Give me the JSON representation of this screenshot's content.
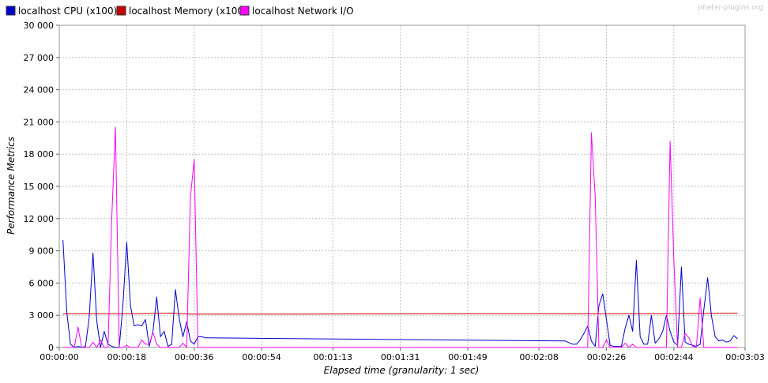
{
  "watermark": "jmeter-plugins.org",
  "legend": [
    {
      "label": "localhost CPU (x100)",
      "color": "#0000cc"
    },
    {
      "label": "localhost Memory (x100)",
      "color": "#cc0000"
    },
    {
      "label": "localhost Network I/O",
      "color": "#ff00ff"
    }
  ],
  "chart_data": {
    "type": "line",
    "title": "",
    "xlabel": "Elapsed time (granularity: 1 sec)",
    "ylabel": "Performance Metrics",
    "xlim": [
      0,
      183
    ],
    "ylim": [
      0,
      30000
    ],
    "grid": true,
    "legend_position": "top-left",
    "x_ticks": [
      {
        "value": 0,
        "label": "00:00:00"
      },
      {
        "value": 18,
        "label": "00:00:18"
      },
      {
        "value": 36,
        "label": "00:00:36"
      },
      {
        "value": 54,
        "label": "00:00:54"
      },
      {
        "value": 73,
        "label": "00:01:13"
      },
      {
        "value": 91,
        "label": "00:01:31"
      },
      {
        "value": 109,
        "label": "00:01:49"
      },
      {
        "value": 128,
        "label": "00:02:08"
      },
      {
        "value": 146,
        "label": "00:02:26"
      },
      {
        "value": 164,
        "label": "00:02:44"
      },
      {
        "value": 183,
        "label": "00:03:03"
      }
    ],
    "y_ticks": [
      {
        "value": 0,
        "label": "0"
      },
      {
        "value": 3000,
        "label": "3 000"
      },
      {
        "value": 6000,
        "label": "6 000"
      },
      {
        "value": 9000,
        "label": "9 000"
      },
      {
        "value": 12000,
        "label": "12 000"
      },
      {
        "value": 15000,
        "label": "15 000"
      },
      {
        "value": 18000,
        "label": "18 000"
      },
      {
        "value": 21000,
        "label": "21 000"
      },
      {
        "value": 24000,
        "label": "24 000"
      },
      {
        "value": 27000,
        "label": "27 000"
      },
      {
        "value": 30000,
        "label": "30 000"
      }
    ],
    "series": [
      {
        "name": "localhost CPU (x100)",
        "color": "#0000cc",
        "points": [
          [
            1,
            10000
          ],
          [
            2,
            3300
          ],
          [
            3,
            300
          ],
          [
            4,
            0
          ],
          [
            5,
            100
          ],
          [
            6,
            0
          ],
          [
            7,
            100
          ],
          [
            8,
            2800
          ],
          [
            9,
            8800
          ],
          [
            10,
            2500
          ],
          [
            11,
            0
          ],
          [
            12,
            1500
          ],
          [
            13,
            300
          ],
          [
            14,
            100
          ],
          [
            15,
            0
          ],
          [
            16,
            0
          ],
          [
            17,
            4000
          ],
          [
            18,
            9800
          ],
          [
            19,
            3900
          ],
          [
            20,
            2000
          ],
          [
            21,
            2100
          ],
          [
            22,
            2000
          ],
          [
            23,
            2600
          ],
          [
            24,
            100
          ],
          [
            25,
            1500
          ],
          [
            26,
            4700
          ],
          [
            27,
            1000
          ],
          [
            28,
            1500
          ],
          [
            29,
            100
          ],
          [
            30,
            300
          ],
          [
            31,
            5400
          ],
          [
            32,
            2700
          ],
          [
            33,
            1000
          ],
          [
            34,
            2400
          ],
          [
            35,
            600
          ],
          [
            36,
            300
          ],
          [
            37,
            1000
          ],
          [
            38,
            1000
          ],
          [
            39,
            900
          ],
          [
            135,
            600
          ],
          [
            137,
            300
          ],
          [
            138,
            300
          ],
          [
            139,
            700
          ],
          [
            140,
            1300
          ],
          [
            141,
            2000
          ],
          [
            142,
            600
          ],
          [
            143,
            100
          ],
          [
            144,
            3900
          ],
          [
            145,
            5000
          ],
          [
            146,
            2600
          ],
          [
            147,
            200
          ],
          [
            148,
            100
          ],
          [
            149,
            100
          ],
          [
            150,
            100
          ],
          [
            151,
            1800
          ],
          [
            152,
            3000
          ],
          [
            153,
            1500
          ],
          [
            154,
            8100
          ],
          [
            155,
            1000
          ],
          [
            156,
            300
          ],
          [
            157,
            300
          ],
          [
            158,
            3000
          ],
          [
            159,
            400
          ],
          [
            160,
            800
          ],
          [
            161,
            1500
          ],
          [
            162,
            3000
          ],
          [
            163,
            1500
          ],
          [
            164,
            500
          ],
          [
            165,
            200
          ],
          [
            166,
            7500
          ],
          [
            167,
            500
          ],
          [
            168,
            300
          ],
          [
            169,
            200
          ],
          [
            170,
            100
          ],
          [
            171,
            300
          ],
          [
            172,
            3500
          ],
          [
            173,
            6500
          ],
          [
            174,
            3000
          ],
          [
            175,
            1000
          ],
          [
            176,
            600
          ],
          [
            177,
            700
          ],
          [
            178,
            500
          ],
          [
            179,
            600
          ],
          [
            180,
            1100
          ],
          [
            181,
            800
          ]
        ]
      },
      {
        "name": "localhost Memory (x100)",
        "color": "#cc0000",
        "points": [
          [
            1,
            3100
          ],
          [
            2,
            3150
          ],
          [
            10,
            3150
          ],
          [
            20,
            3150
          ],
          [
            30,
            3200
          ],
          [
            35,
            3100
          ],
          [
            37,
            3100
          ],
          [
            60,
            3100
          ],
          [
            100,
            3150
          ],
          [
            140,
            3150
          ],
          [
            160,
            3150
          ],
          [
            181,
            3200
          ]
        ]
      },
      {
        "name": "localhost Network I/O",
        "color": "#ff00ff",
        "points": [
          [
            1,
            0
          ],
          [
            4,
            0
          ],
          [
            5,
            1900
          ],
          [
            6,
            0
          ],
          [
            7,
            0
          ],
          [
            8,
            0
          ],
          [
            9,
            500
          ],
          [
            10,
            0
          ],
          [
            11,
            700
          ],
          [
            12,
            0
          ],
          [
            13,
            0
          ],
          [
            14,
            12000
          ],
          [
            15,
            20500
          ],
          [
            16,
            0
          ],
          [
            17,
            0
          ],
          [
            18,
            200
          ],
          [
            19,
            0
          ],
          [
            20,
            0
          ],
          [
            21,
            0
          ],
          [
            22,
            700
          ],
          [
            23,
            300
          ],
          [
            24,
            300
          ],
          [
            25,
            1400
          ],
          [
            26,
            300
          ],
          [
            27,
            0
          ],
          [
            28,
            0
          ],
          [
            29,
            0
          ],
          [
            30,
            0
          ],
          [
            31,
            0
          ],
          [
            32,
            0
          ],
          [
            33,
            400
          ],
          [
            34,
            0
          ],
          [
            35,
            14000
          ],
          [
            36,
            17500
          ],
          [
            37,
            0
          ],
          [
            38,
            0
          ],
          [
            39,
            0
          ],
          [
            135,
            0
          ],
          [
            137,
            0
          ],
          [
            138,
            0
          ],
          [
            139,
            0
          ],
          [
            140,
            0
          ],
          [
            141,
            0
          ],
          [
            142,
            20000
          ],
          [
            143,
            14000
          ],
          [
            144,
            0
          ],
          [
            145,
            0
          ],
          [
            146,
            700
          ],
          [
            147,
            0
          ],
          [
            148,
            0
          ],
          [
            149,
            0
          ],
          [
            150,
            0
          ],
          [
            151,
            400
          ],
          [
            152,
            0
          ],
          [
            153,
            300
          ],
          [
            154,
            0
          ],
          [
            155,
            0
          ],
          [
            156,
            0
          ],
          [
            157,
            0
          ],
          [
            158,
            0
          ],
          [
            159,
            0
          ],
          [
            160,
            0
          ],
          [
            161,
            0
          ],
          [
            162,
            0
          ],
          [
            163,
            19200
          ],
          [
            164,
            8000
          ],
          [
            165,
            0
          ],
          [
            166,
            0
          ],
          [
            167,
            1300
          ],
          [
            168,
            900
          ],
          [
            169,
            100
          ],
          [
            170,
            0
          ],
          [
            171,
            4600
          ],
          [
            172,
            0
          ],
          [
            173,
            0
          ],
          [
            174,
            0
          ],
          [
            175,
            0
          ],
          [
            176,
            0
          ],
          [
            181,
            0
          ]
        ]
      }
    ]
  }
}
